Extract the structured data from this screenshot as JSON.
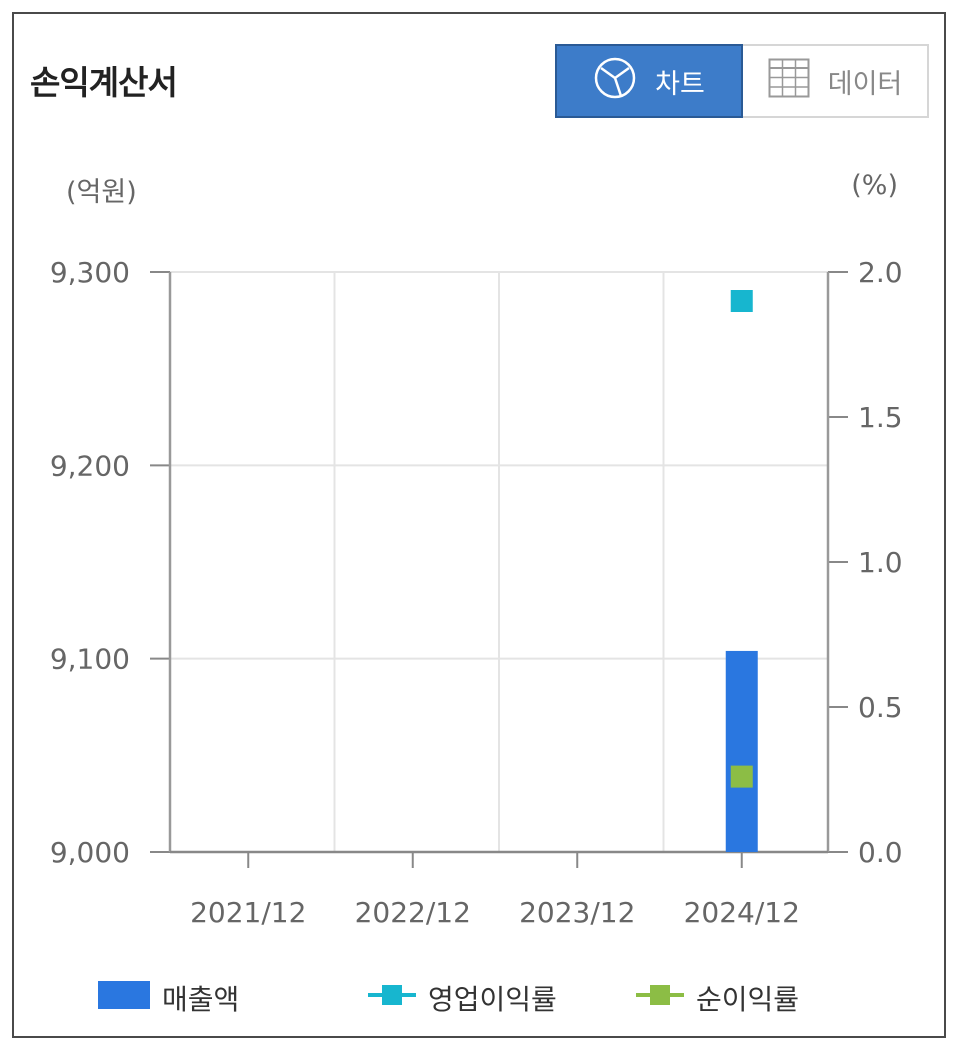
{
  "header": {
    "title": "손익계산서"
  },
  "toggle": {
    "chart_label": "차트",
    "data_label": "데이터"
  },
  "units": {
    "left": "(억원)",
    "right": "(%)"
  },
  "colors": {
    "sales": "#2a77e0",
    "op_margin": "#17b6cf",
    "net_margin": "#8cbd45"
  },
  "chart_data": {
    "type": "bar",
    "categories": [
      "2021/12",
      "2022/12",
      "2023/12",
      "2024/12"
    ],
    "y_left": {
      "label": "(억원)",
      "ylim": [
        9000,
        9300
      ],
      "ticks": [
        9000,
        9100,
        9200,
        9300
      ],
      "tick_labels": [
        "9,000",
        "9,100",
        "9,200",
        "9,300"
      ]
    },
    "y_right": {
      "label": "(%)",
      "ylim": [
        0,
        2.0
      ],
      "ticks": [
        0,
        0.5,
        1.0,
        1.5,
        2.0
      ],
      "tick_labels": [
        "0.0",
        "0.5",
        "1.0",
        "1.5",
        "2.0"
      ]
    },
    "series": [
      {
        "name": "매출액",
        "type": "bar",
        "axis": "left",
        "values": [
          null,
          null,
          null,
          9104
        ]
      },
      {
        "name": "영업이익률",
        "type": "line",
        "axis": "right",
        "values": [
          null,
          null,
          null,
          1.9
        ]
      },
      {
        "name": "순이익률",
        "type": "line",
        "axis": "right",
        "values": [
          null,
          null,
          null,
          0.26
        ]
      }
    ],
    "grid": true,
    "legend_position": "bottom"
  }
}
